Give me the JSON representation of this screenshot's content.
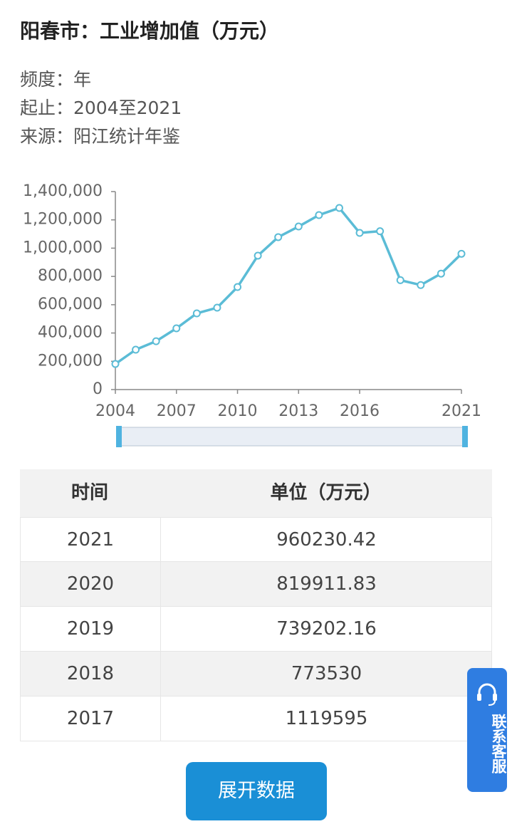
{
  "header": {
    "title": "阳春市：工业增加值（万元）",
    "meta": [
      "频度：年",
      "起止：2004至2021",
      "来源：阳江统计年鉴"
    ]
  },
  "chart_data": {
    "type": "line",
    "x": [
      2004,
      2005,
      2006,
      2007,
      2008,
      2009,
      2010,
      2011,
      2012,
      2013,
      2014,
      2015,
      2016,
      2017,
      2018,
      2019,
      2020,
      2021
    ],
    "series": [
      {
        "name": "工业增加值",
        "color": "#5bbcd6",
        "values": [
          181000,
          282000,
          342000,
          433000,
          539000,
          579000,
          725000,
          947000,
          1078000,
          1153000,
          1234000,
          1284000,
          1108000,
          1119595,
          773530,
          739202.16,
          819911.83,
          960230.42
        ]
      }
    ],
    "xlim": [
      2004,
      2021
    ],
    "xticks": [
      2004,
      2007,
      2010,
      2013,
      2016,
      2021
    ],
    "ylim": [
      0,
      1400000
    ],
    "yticks": [
      0,
      {
        "value": 200000,
        "label": "200,000"
      },
      {
        "value": 400000,
        "label": "400,000"
      },
      {
        "value": 600000,
        "label": "600,000"
      },
      {
        "value": 800000,
        "label": "800,000"
      },
      {
        "value": 1000000,
        "label": "1,000,000"
      },
      {
        "value": 1200000,
        "label": "1,200,000"
      },
      {
        "value": 1400000,
        "label": "1,400,000"
      }
    ],
    "grid": false
  },
  "table": {
    "headers": [
      "时间",
      "单位（万元）"
    ],
    "rows": [
      [
        "2021",
        "960230.42"
      ],
      [
        "2020",
        "819911.83"
      ],
      [
        "2019",
        "739202.16"
      ],
      [
        "2018",
        "773530"
      ],
      [
        "2017",
        "1119595"
      ]
    ]
  },
  "buttons": {
    "expand": "展开数据",
    "service": "联系客服"
  }
}
